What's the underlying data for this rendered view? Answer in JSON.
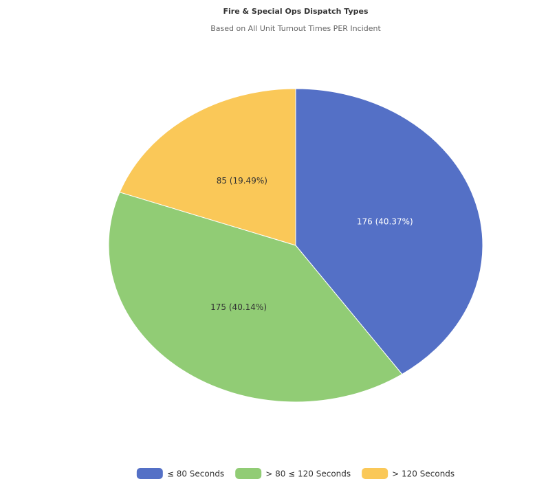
{
  "chart_data": {
    "type": "pie",
    "title": "Fire & Special Ops Dispatch Types",
    "subtitle": "Based on All Unit Turnout Times PER Incident",
    "categories": [
      "≤ 80 Seconds",
      "> 80 ≤ 120 Seconds",
      "> 120 Seconds"
    ],
    "values": [
      176,
      175,
      85
    ],
    "value_labels": [
      "176 (40.37%)",
      "175 (40.14%)",
      "85 (19.49%)"
    ],
    "colors": [
      "#5470c6",
      "#91cc75",
      "#fac858"
    ],
    "legend": "bottom"
  }
}
